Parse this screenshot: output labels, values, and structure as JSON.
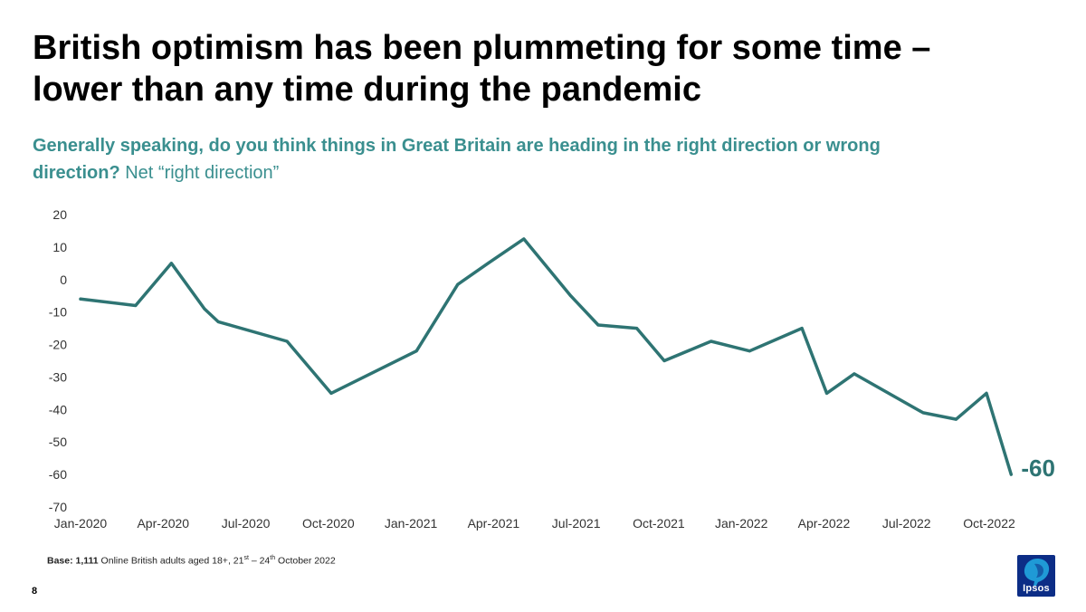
{
  "title": "British optimism has been plummeting for some time – lower than any time during the pandemic",
  "subtitle": {
    "question": "Generally speaking, do you think things in Great Britain are heading in the right direction or wrong direction?",
    "measure": " Net “right direction”"
  },
  "chart_data": {
    "type": "line",
    "title": "",
    "xlabel": "",
    "ylabel": "",
    "ylim": [
      -70,
      20
    ],
    "yticks": [
      20,
      10,
      0,
      -10,
      -20,
      -30,
      -40,
      -50,
      -60,
      -70
    ],
    "x_range": [
      0,
      33
    ],
    "xticks": [
      {
        "label": "Jan-2020",
        "x": 0
      },
      {
        "label": "Apr-2020",
        "x": 3
      },
      {
        "label": "Jul-2020",
        "x": 6
      },
      {
        "label": "Oct-2020",
        "x": 9
      },
      {
        "label": "Jan-2021",
        "x": 12
      },
      {
        "label": "Apr-2021",
        "x": 15
      },
      {
        "label": "Jul-2021",
        "x": 18
      },
      {
        "label": "Oct-2021",
        "x": 21
      },
      {
        "label": "Jan-2022",
        "x": 24
      },
      {
        "label": "Apr-2022",
        "x": 27
      },
      {
        "label": "Jul-2022",
        "x": 30
      },
      {
        "label": "Oct-2022",
        "x": 33
      }
    ],
    "series": [
      {
        "name": "Net right direction",
        "color": "#2e7473",
        "points": [
          {
            "x": 0,
            "y": -6
          },
          {
            "x": 2,
            "y": -8
          },
          {
            "x": 3.3,
            "y": 5
          },
          {
            "x": 4.5,
            "y": -9
          },
          {
            "x": 5,
            "y": -13
          },
          {
            "x": 7.5,
            "y": -19
          },
          {
            "x": 9.1,
            "y": -35
          },
          {
            "x": 12.2,
            "y": -22
          },
          {
            "x": 13.7,
            "y": -1.5
          },
          {
            "x": 14.8,
            "y": 5
          },
          {
            "x": 16.1,
            "y": 12.5
          },
          {
            "x": 17.8,
            "y": -5
          },
          {
            "x": 18.8,
            "y": -14
          },
          {
            "x": 20.2,
            "y": -15
          },
          {
            "x": 21.2,
            "y": -25
          },
          {
            "x": 22.9,
            "y": -19
          },
          {
            "x": 24.3,
            "y": -22
          },
          {
            "x": 26.2,
            "y": -15
          },
          {
            "x": 27.1,
            "y": -35
          },
          {
            "x": 28.1,
            "y": -29
          },
          {
            "x": 30.6,
            "y": -41
          },
          {
            "x": 31.8,
            "y": -43
          },
          {
            "x": 32.9,
            "y": -35
          },
          {
            "x": 33.8,
            "y": -60
          }
        ]
      }
    ],
    "end_label": "-60"
  },
  "footer": {
    "base_bold": "Base: 1,111",
    "base_text": " Online British adults aged 18+, 21",
    "base_sup1": "st",
    "base_mid": " – 24",
    "base_sup2": "th",
    "base_end": " October 2022",
    "page_number": "8"
  },
  "logo": {
    "text": "Ipsos",
    "bg": "#0c2d86"
  }
}
